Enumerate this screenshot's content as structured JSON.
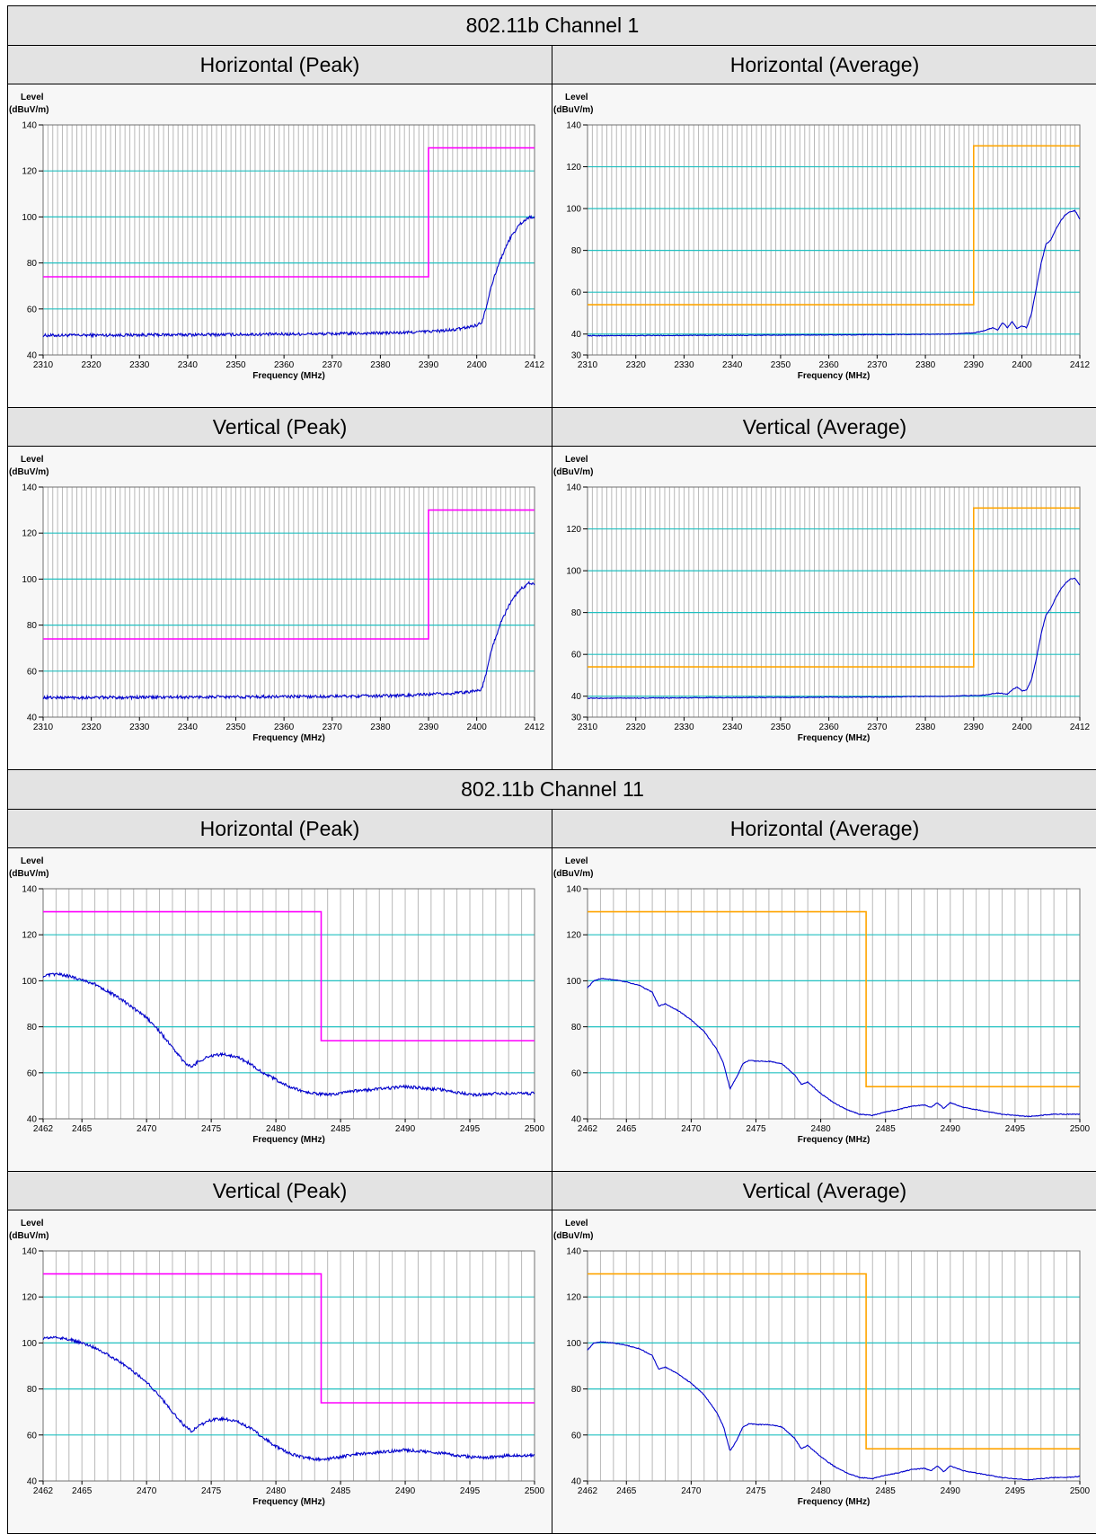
{
  "sections": [
    {
      "title": "802.11b Channel 1",
      "charts": [
        {
          "title": "Horizontal (Peak)",
          "kind": "peak"
        },
        {
          "title": "Horizontal (Average)",
          "kind": "avg"
        },
        {
          "title": "Vertical (Peak)",
          "kind": "peak"
        },
        {
          "title": "Vertical (Average)",
          "kind": "avg"
        }
      ]
    },
    {
      "title": "802.11b Channel 11",
      "charts": [
        {
          "title": "Horizontal (Peak)",
          "kind": "peak"
        },
        {
          "title": "Horizontal (Average)",
          "kind": "avg"
        },
        {
          "title": "Vertical (Peak)",
          "kind": "peak"
        },
        {
          "title": "Vertical (Average)",
          "kind": "avg"
        }
      ]
    }
  ],
  "colors": {
    "trace": "#0000cc",
    "limit_peak": "#ff00ff",
    "limit_avg": "#ffa500",
    "grid_h": "#20c0c0",
    "grid_v": "#b8b8b8"
  },
  "chart_data": [
    {
      "type": "line",
      "title": "802.11b Channel 1 - Horizontal (Peak)",
      "ylabel": "Level",
      "yunit": "(dBuV/m)",
      "xlabel": "Frequency (MHz)",
      "xlim": [
        2310,
        2412
      ],
      "ylim": [
        40,
        140
      ],
      "xticks": [
        2310,
        2320,
        2330,
        2340,
        2350,
        2360,
        2370,
        2380,
        2390,
        2400,
        2412
      ],
      "yticks": [
        40,
        60,
        80,
        100,
        120,
        140
      ],
      "series": [
        {
          "role": "trace",
          "x": [
            2310,
            2330,
            2350,
            2370,
            2385,
            2395,
            2398,
            2400,
            2401,
            2402,
            2403,
            2405,
            2407,
            2409,
            2411,
            2412
          ],
          "y": [
            48.5,
            48.7,
            48.9,
            49.2,
            49.7,
            50.8,
            52,
            53,
            54,
            61,
            70,
            82,
            91,
            97,
            100,
            100
          ]
        },
        {
          "role": "limit",
          "x": [
            2310,
            2390,
            2390,
            2412
          ],
          "y": [
            74,
            74,
            130,
            130
          ]
        }
      ]
    },
    {
      "type": "line",
      "title": "802.11b Channel 1 - Horizontal (Average)",
      "ylabel": "Level",
      "yunit": "(dBuV/m)",
      "xlabel": "Frequency (MHz)",
      "xlim": [
        2310,
        2412
      ],
      "ylim": [
        30,
        140
      ],
      "xticks": [
        2310,
        2320,
        2330,
        2340,
        2350,
        2360,
        2370,
        2380,
        2390,
        2400,
        2412
      ],
      "yticks": [
        30,
        40,
        60,
        80,
        100,
        120,
        140
      ],
      "series": [
        {
          "role": "trace",
          "x": [
            2310,
            2340,
            2370,
            2385,
            2390,
            2392,
            2394,
            2395,
            2396,
            2397,
            2398,
            2399,
            2400,
            2401,
            2402,
            2403,
            2404,
            2405,
            2406,
            2407,
            2408,
            2409,
            2410,
            2411,
            2412
          ],
          "y": [
            39.2,
            39.4,
            39.7,
            40,
            40.5,
            41.5,
            43,
            42,
            45.5,
            43,
            46,
            42.5,
            44,
            43,
            50,
            62,
            74,
            83,
            85,
            90,
            94,
            97,
            98.5,
            99,
            95
          ]
        },
        {
          "role": "limit",
          "x": [
            2310,
            2390,
            2390,
            2412
          ],
          "y": [
            54,
            54,
            130,
            130
          ]
        }
      ]
    },
    {
      "type": "line",
      "title": "802.11b Channel 1 - Vertical (Peak)",
      "ylabel": "Level",
      "yunit": "(dBuV/m)",
      "xlabel": "Frequency (MHz)",
      "xlim": [
        2310,
        2412
      ],
      "ylim": [
        40,
        140
      ],
      "xticks": [
        2310,
        2320,
        2330,
        2340,
        2350,
        2360,
        2370,
        2380,
        2390,
        2400,
        2412
      ],
      "yticks": [
        40,
        60,
        80,
        100,
        120,
        140
      ],
      "series": [
        {
          "role": "trace",
          "x": [
            2310,
            2330,
            2350,
            2370,
            2385,
            2395,
            2398,
            2400,
            2401,
            2402,
            2403,
            2405,
            2407,
            2409,
            2411,
            2412
          ],
          "y": [
            48.5,
            48.6,
            48.8,
            49,
            49.4,
            50.3,
            51,
            51.5,
            52,
            59,
            69,
            81,
            90,
            95.5,
            98.5,
            98
          ]
        },
        {
          "role": "limit",
          "x": [
            2310,
            2390,
            2390,
            2412
          ],
          "y": [
            74,
            74,
            130,
            130
          ]
        }
      ]
    },
    {
      "type": "line",
      "title": "802.11b Channel 1 - Vertical (Average)",
      "ylabel": "Level",
      "yunit": "(dBuV/m)",
      "xlabel": "Frequency (MHz)",
      "xlim": [
        2310,
        2412
      ],
      "ylim": [
        30,
        140
      ],
      "xticks": [
        2310,
        2320,
        2330,
        2340,
        2350,
        2360,
        2370,
        2380,
        2390,
        2400,
        2412
      ],
      "yticks": [
        30,
        40,
        60,
        80,
        100,
        120,
        140
      ],
      "series": [
        {
          "role": "trace",
          "x": [
            2310,
            2340,
            2370,
            2385,
            2392,
            2395,
            2397,
            2398,
            2399,
            2400,
            2401,
            2402,
            2403,
            2404,
            2405,
            2406,
            2407,
            2408,
            2409,
            2410,
            2411,
            2412
          ],
          "y": [
            39,
            39.3,
            39.6,
            40,
            40.5,
            41.5,
            41,
            43,
            44.5,
            42.5,
            43,
            48,
            58,
            70,
            79,
            82,
            87,
            91,
            94,
            96,
            96.5,
            93
          ]
        },
        {
          "role": "limit",
          "x": [
            2310,
            2390,
            2390,
            2412
          ],
          "y": [
            54,
            54,
            130,
            130
          ]
        }
      ]
    },
    {
      "type": "line",
      "title": "802.11b Channel 11 - Horizontal (Peak)",
      "ylabel": "Level",
      "yunit": "(dBuV/m)",
      "xlabel": "Frequency (MHz)",
      "xlim": [
        2462,
        2500
      ],
      "ylim": [
        40,
        140
      ],
      "xticks": [
        2462,
        2465,
        2470,
        2475,
        2480,
        2485,
        2490,
        2495,
        2500
      ],
      "yticks": [
        40,
        60,
        80,
        100,
        120,
        140
      ],
      "series": [
        {
          "role": "trace",
          "x": [
            2462,
            2463,
            2464,
            2465,
            2466,
            2467,
            2468,
            2469,
            2470,
            2471,
            2472,
            2473,
            2473.5,
            2474,
            2475,
            2476,
            2477,
            2478,
            2479,
            2480,
            2481,
            2482,
            2483,
            2484,
            2485,
            2486,
            2487,
            2488,
            2489,
            2490,
            2491,
            2492,
            2493,
            2494,
            2495,
            2496,
            2497,
            2498,
            2499,
            2500
          ],
          "y": [
            102,
            103,
            102,
            100.5,
            98.5,
            95.5,
            92,
            88,
            84,
            78,
            71,
            64,
            62.5,
            65,
            67.5,
            68,
            67,
            64,
            60,
            57,
            54,
            52,
            51,
            50.5,
            51,
            52,
            52.5,
            53,
            53.5,
            54,
            53.5,
            53,
            52.5,
            51.5,
            50.5,
            50.5,
            51,
            51,
            51,
            51
          ]
        },
        {
          "role": "limit",
          "x": [
            2462,
            2483.5,
            2483.5,
            2500
          ],
          "y": [
            130,
            130,
            74,
            74
          ]
        }
      ]
    },
    {
      "type": "line",
      "title": "802.11b Channel 11 - Horizontal (Average)",
      "ylabel": "Level",
      "yunit": "(dBuV/m)",
      "xlabel": "Frequency (MHz)",
      "xlim": [
        2462,
        2500
      ],
      "ylim": [
        40,
        140
      ],
      "xticks": [
        2462,
        2465,
        2470,
        2475,
        2480,
        2485,
        2490,
        2495,
        2500
      ],
      "yticks": [
        40,
        60,
        80,
        100,
        120,
        140
      ],
      "series": [
        {
          "role": "trace",
          "x": [
            2462,
            2462.5,
            2463,
            2464,
            2465,
            2466,
            2467,
            2467.5,
            2468,
            2469,
            2470,
            2471,
            2472,
            2472.5,
            2473,
            2473.5,
            2474,
            2474.5,
            2475,
            2476,
            2477,
            2478,
            2478.5,
            2479,
            2480,
            2481,
            2482,
            2483,
            2484,
            2485,
            2486,
            2487,
            2488,
            2488.5,
            2489,
            2489.5,
            2490,
            2491,
            2492,
            2493,
            2494,
            2495,
            2496,
            2497,
            2498,
            2499,
            2500
          ],
          "y": [
            97,
            100,
            101,
            100.5,
            99.5,
            98,
            95,
            89,
            90,
            87,
            83,
            78,
            70,
            64,
            53,
            58,
            64,
            65.5,
            65,
            65,
            64,
            59,
            55,
            56,
            51,
            47,
            44,
            42,
            41.5,
            43,
            44,
            45.5,
            46,
            45,
            47,
            44.5,
            47,
            45,
            44,
            43,
            42,
            41.5,
            41,
            41.5,
            42,
            42,
            42
          ]
        },
        {
          "role": "limit",
          "x": [
            2462,
            2483.5,
            2483.5,
            2500
          ],
          "y": [
            130,
            130,
            54,
            54
          ]
        }
      ]
    },
    {
      "type": "line",
      "title": "802.11b Channel 11 - Vertical (Peak)",
      "ylabel": "Level",
      "yunit": "(dBuV/m)",
      "xlabel": "Frequency (MHz)",
      "xlim": [
        2462,
        2500
      ],
      "ylim": [
        40,
        140
      ],
      "xticks": [
        2462,
        2465,
        2470,
        2475,
        2480,
        2485,
        2490,
        2495,
        2500
      ],
      "yticks": [
        40,
        60,
        80,
        100,
        120,
        140
      ],
      "series": [
        {
          "role": "trace",
          "x": [
            2462,
            2463,
            2464,
            2465,
            2466,
            2467,
            2468,
            2469,
            2470,
            2471,
            2472,
            2473,
            2473.5,
            2474,
            2475,
            2476,
            2477,
            2478,
            2479,
            2480,
            2481,
            2482,
            2483,
            2484,
            2485,
            2486,
            2487,
            2488,
            2489,
            2490,
            2491,
            2492,
            2493,
            2494,
            2495,
            2496,
            2497,
            2498,
            2499,
            2500
          ],
          "y": [
            102,
            102.5,
            101.5,
            100,
            98,
            95,
            91.5,
            87.5,
            83,
            77,
            70,
            63.5,
            61.5,
            64,
            66.5,
            67,
            66,
            63,
            59,
            55,
            52,
            50.5,
            49.5,
            49.5,
            50.5,
            51.5,
            52,
            52.5,
            53,
            53.5,
            53,
            52.5,
            52,
            51,
            50.5,
            50,
            50.5,
            51,
            51,
            51
          ]
        },
        {
          "role": "limit",
          "x": [
            2462,
            2483.5,
            2483.5,
            2500
          ],
          "y": [
            130,
            130,
            74,
            74
          ]
        }
      ]
    },
    {
      "type": "line",
      "title": "802.11b Channel 11 - Vertical (Average)",
      "ylabel": "Level",
      "yunit": "(dBuV/m)",
      "xlabel": "Frequency (MHz)",
      "xlim": [
        2462,
        2500
      ],
      "ylim": [
        40,
        140
      ],
      "xticks": [
        2462,
        2465,
        2470,
        2475,
        2480,
        2485,
        2490,
        2495,
        2500
      ],
      "yticks": [
        40,
        60,
        80,
        100,
        120,
        140
      ],
      "series": [
        {
          "role": "trace",
          "x": [
            2462,
            2462.5,
            2463,
            2464,
            2465,
            2466,
            2467,
            2467.5,
            2468,
            2469,
            2470,
            2471,
            2472,
            2472.5,
            2473,
            2473.5,
            2474,
            2474.5,
            2475,
            2476,
            2477,
            2478,
            2478.5,
            2479,
            2480,
            2481,
            2482,
            2483,
            2484,
            2485,
            2486,
            2487,
            2488,
            2488.5,
            2489,
            2489.5,
            2490,
            2491,
            2492,
            2493,
            2494,
            2495,
            2496,
            2497,
            2498,
            2499,
            2500
          ],
          "y": [
            97,
            100,
            100.5,
            100,
            99,
            97.5,
            94.5,
            88.5,
            89.5,
            86.5,
            82.5,
            77.5,
            69.5,
            63.5,
            53,
            57.5,
            63.5,
            65,
            64.5,
            64.5,
            63.5,
            58.5,
            54,
            55.5,
            50.5,
            46.5,
            43.5,
            41.5,
            41,
            42.5,
            43.5,
            45,
            45.5,
            44.5,
            46.5,
            44,
            46.5,
            44.5,
            43.5,
            42.5,
            41.5,
            41,
            40.5,
            41,
            41.5,
            41.5,
            42
          ]
        },
        {
          "role": "limit",
          "x": [
            2462,
            2483.5,
            2483.5,
            2500
          ],
          "y": [
            130,
            130,
            54,
            54
          ]
        }
      ]
    }
  ]
}
